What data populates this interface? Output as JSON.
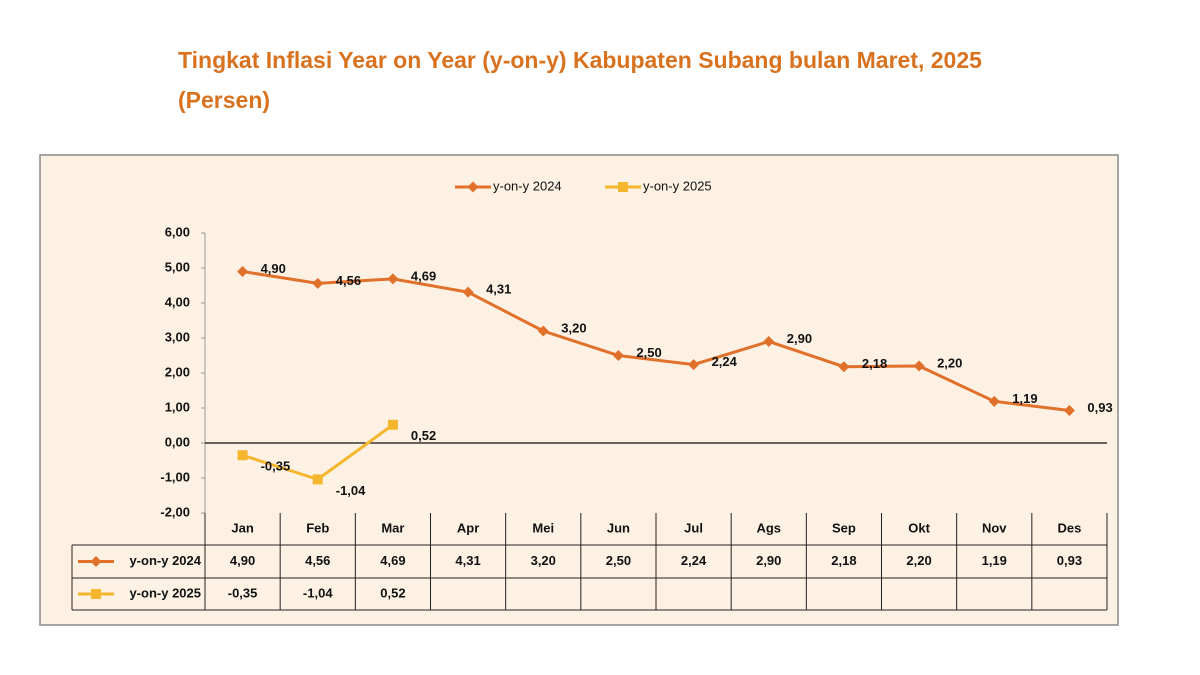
{
  "chart_data": {
    "type": "line",
    "title": "Tingkat Inflasi Year on Year (y-on-y) Kabupaten Subang bulan Maret, 2025 (Persen)",
    "categories": [
      "Jan",
      "Feb",
      "Mar",
      "Apr",
      "Mei",
      "Jun",
      "Jul",
      "Ags",
      "Sep",
      "Okt",
      "Nov",
      "Des"
    ],
    "series": [
      {
        "name": "y-on-y 2024",
        "color": "#e0702a",
        "marker": "diamond",
        "values": [
          4.9,
          4.56,
          4.69,
          4.31,
          3.2,
          2.5,
          2.24,
          2.9,
          2.18,
          2.2,
          1.19,
          0.93
        ],
        "value_labels": [
          "4,90",
          "4,56",
          "4,69",
          "4,31",
          "3,20",
          "2,50",
          "2,24",
          "2,90",
          "2,18",
          "2,20",
          "1,19",
          "0,93"
        ]
      },
      {
        "name": "y-on-y 2025",
        "color": "#f4b62c",
        "marker": "square",
        "values": [
          -0.35,
          -1.04,
          0.52,
          null,
          null,
          null,
          null,
          null,
          null,
          null,
          null,
          null
        ],
        "value_labels": [
          "-0,35",
          "-1,04",
          "0,52",
          null,
          null,
          null,
          null,
          null,
          null,
          null,
          null,
          null
        ]
      }
    ],
    "ylim": [
      -2,
      6
    ],
    "yticks": [
      {
        "value": -2,
        "label": "-2,00"
      },
      {
        "value": -1,
        "label": "-1,00"
      },
      {
        "value": 0,
        "label": "0,00"
      },
      {
        "value": 1,
        "label": "1,00"
      },
      {
        "value": 2,
        "label": "2,00"
      },
      {
        "value": 3,
        "label": "3,00"
      },
      {
        "value": 4,
        "label": "4,00"
      },
      {
        "value": 5,
        "label": "5,00"
      },
      {
        "value": 6,
        "label": "6,00"
      }
    ],
    "grid": false,
    "legend": "top",
    "data_table": true
  }
}
